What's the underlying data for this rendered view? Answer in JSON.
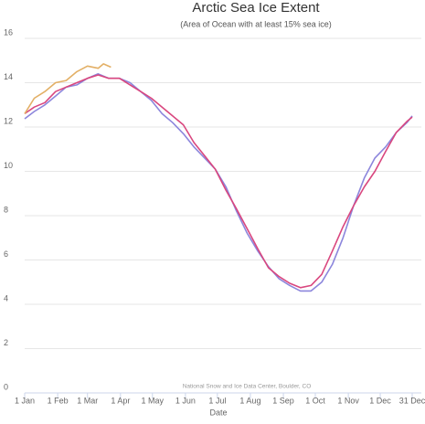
{
  "chart_data": {
    "type": "line",
    "title": "Arctic Sea Ice Extent",
    "subtitle": "(Area of Ocean with at least 15% sea ice)",
    "x_label": "Date",
    "credit": "National Snow and Ice Data Center, Boulder, CO",
    "xlim": [
      1,
      365
    ],
    "xticks": [
      {
        "value": 1,
        "label": "1 Jan"
      },
      {
        "value": 32,
        "label": "1 Feb"
      },
      {
        "value": 60,
        "label": "1 Mar"
      },
      {
        "value": 91,
        "label": "1 Apr"
      },
      {
        "value": 121,
        "label": "1 May"
      },
      {
        "value": 152,
        "label": "1 Jun"
      },
      {
        "value": 182,
        "label": "1 Jul"
      },
      {
        "value": 213,
        "label": "1 Aug"
      },
      {
        "value": 244,
        "label": "1 Sep"
      },
      {
        "value": 274,
        "label": "1 Oct"
      },
      {
        "value": 305,
        "label": "1 Nov"
      },
      {
        "value": 335,
        "label": "1 Dec"
      },
      {
        "value": 365,
        "label": "31 Dec"
      }
    ],
    "ylim": [
      0,
      16
    ],
    "yticks": [
      0,
      2,
      4,
      6,
      8,
      10,
      12,
      14,
      16
    ],
    "grid": true,
    "series": [
      {
        "color": "#8c86dc",
        "x": [
          1,
          10,
          20,
          30,
          40,
          50,
          60,
          70,
          80,
          90,
          100,
          110,
          120,
          130,
          140,
          150,
          160,
          170,
          180,
          190,
          200,
          210,
          220,
          230,
          240,
          250,
          260,
          270,
          280,
          290,
          300,
          310,
          320,
          330,
          340,
          350,
          360,
          365
        ],
        "values": [
          12.37,
          12.7,
          13.0,
          13.4,
          13.8,
          13.9,
          14.2,
          14.4,
          14.2,
          14.2,
          14.0,
          13.6,
          13.2,
          12.6,
          12.2,
          11.7,
          11.1,
          10.6,
          10.1,
          9.3,
          8.2,
          7.2,
          6.4,
          5.7,
          5.15,
          4.85,
          4.6,
          4.6,
          5.0,
          5.8,
          7.0,
          8.45,
          9.7,
          10.6,
          11.1,
          11.75,
          12.2,
          12.5
        ]
      },
      {
        "color": "#d9477f",
        "x": [
          1,
          10,
          20,
          30,
          40,
          50,
          60,
          70,
          80,
          90,
          100,
          110,
          120,
          130,
          140,
          150,
          160,
          170,
          180,
          190,
          200,
          210,
          220,
          230,
          240,
          250,
          260,
          270,
          280,
          290,
          300,
          310,
          320,
          330,
          340,
          350,
          360,
          365
        ],
        "values": [
          12.6,
          12.9,
          13.1,
          13.6,
          13.8,
          14.0,
          14.2,
          14.35,
          14.2,
          14.2,
          13.9,
          13.6,
          13.3,
          12.9,
          12.5,
          12.1,
          11.3,
          10.7,
          10.1,
          9.15,
          8.3,
          7.4,
          6.5,
          5.65,
          5.25,
          4.95,
          4.75,
          4.85,
          5.35,
          6.4,
          7.5,
          8.45,
          9.3,
          10.0,
          10.9,
          11.75,
          12.25,
          12.45
        ]
      },
      {
        "color": "#e3b066",
        "x": [
          1,
          10,
          20,
          30,
          40,
          50,
          60,
          70,
          75,
          82
        ],
        "values": [
          12.6,
          13.3,
          13.6,
          14.0,
          14.1,
          14.5,
          14.75,
          14.65,
          14.85,
          14.7
        ]
      }
    ]
  }
}
